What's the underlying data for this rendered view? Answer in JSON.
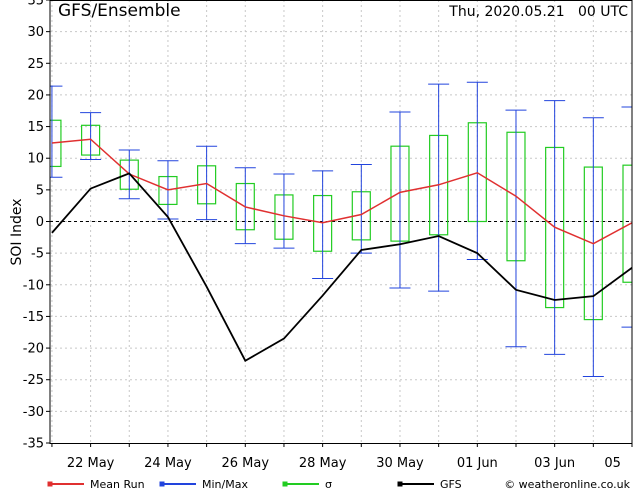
{
  "chart_data": {
    "type": "line",
    "title": "GFS/Ensemble",
    "date_label": "Thu, 2020.05.21   00 UTC",
    "ylabel": "SOI Index",
    "ylim": [
      -35,
      35
    ],
    "yticks": [
      -35,
      -30,
      -25,
      -20,
      -15,
      -10,
      -5,
      0,
      5,
      10,
      15,
      20,
      25,
      30,
      35
    ],
    "xlim": [
      0,
      14.5
    ],
    "xticks": [
      {
        "x": 1,
        "label": "22 May"
      },
      {
        "x": 3,
        "label": "24 May"
      },
      {
        "x": 5,
        "label": "26 May"
      },
      {
        "x": 7,
        "label": "28 May"
      },
      {
        "x": 9,
        "label": "30 May"
      },
      {
        "x": 11,
        "label": "01 Jun"
      },
      {
        "x": 13,
        "label": "03 Jun"
      },
      {
        "x": 14.5,
        "label": "05"
      }
    ],
    "grid": true,
    "x": [
      0,
      1,
      2,
      3,
      4,
      5,
      6,
      7,
      8,
      9,
      10,
      11,
      12,
      13,
      14,
      15
    ],
    "series": [
      {
        "name": "Mean Run",
        "color": "#e03030",
        "values": [
          12.4,
          13.0,
          7.5,
          5.0,
          6.0,
          2.3,
          0.9,
          -0.2,
          1.1,
          4.6,
          5.8,
          7.7,
          4.0,
          -0.9,
          -3.5,
          -0.2
        ]
      },
      {
        "name": "GFS",
        "color": "#000000",
        "values": [
          -1.8,
          5.2,
          7.6,
          0.7,
          -10.3,
          -22.0,
          -18.5,
          -11.7,
          -4.5,
          -3.6,
          -2.3,
          -5.0,
          -10.8,
          -12.4,
          -11.8,
          -7.3
        ]
      }
    ],
    "minmax": {
      "name": "Min/Max",
      "color": "#2244dd",
      "min": [
        7.0,
        9.8,
        3.6,
        0.4,
        0.3,
        -3.5,
        -4.2,
        -9.0,
        -5.0,
        -10.5,
        -11.0,
        -6.0,
        -19.8,
        -21.0,
        -24.5,
        -16.7
      ],
      "max": [
        21.4,
        17.2,
        11.3,
        9.6,
        11.9,
        8.5,
        7.5,
        8.0,
        9.0,
        17.3,
        21.7,
        22.0,
        17.6,
        19.1,
        16.4,
        18.1
      ]
    },
    "sigma": {
      "name": "σ",
      "color": "#22cc22",
      "low": [
        8.7,
        10.5,
        5.1,
        2.7,
        2.8,
        -1.3,
        -2.8,
        -4.7,
        -2.9,
        -3.1,
        -2.1,
        0.0,
        -6.2,
        -13.6,
        -15.5,
        -9.6
      ],
      "high": [
        16.0,
        15.2,
        9.7,
        7.1,
        8.8,
        6.0,
        4.2,
        4.1,
        4.7,
        11.9,
        13.6,
        15.6,
        14.1,
        11.7,
        8.6,
        8.9
      ]
    },
    "legend": [
      {
        "label": "Mean Run",
        "color": "#e03030",
        "marker": "square"
      },
      {
        "label": "Min/Max",
        "color": "#2244dd",
        "marker": "square"
      },
      {
        "label": "σ",
        "color": "#22cc22",
        "marker": "square"
      },
      {
        "label": "GFS",
        "color": "#000000",
        "marker": "square"
      }
    ],
    "legend_position": "bottom",
    "credit": "© weatheronline.co.uk"
  }
}
